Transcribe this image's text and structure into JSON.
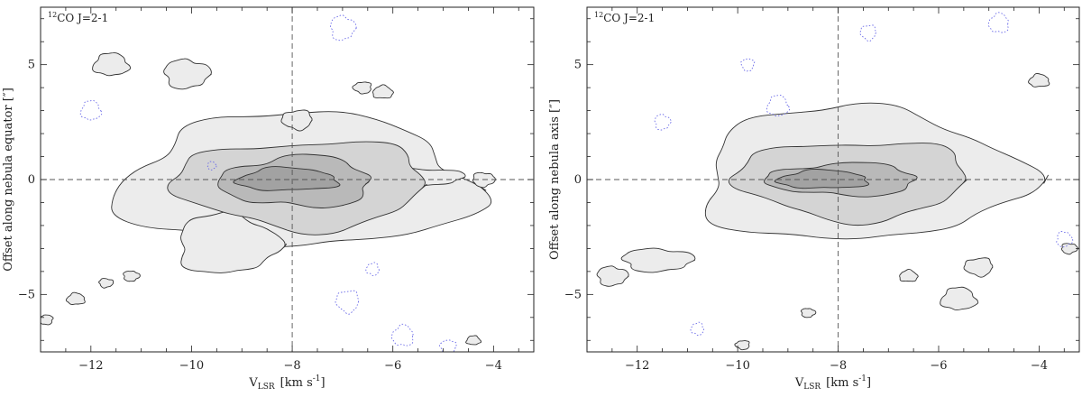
{
  "chart_data": [
    {
      "type": "contour",
      "label_sup": "12",
      "label_main": "CO J=2-1",
      "xlabel_main": "V",
      "xlabel_sub": "LSR",
      "xlabel_unit_a": "[km s",
      "xlabel_unit_sup": "-1",
      "xlabel_unit_b": "]",
      "ylabel": "Offset along nebula equator [″]",
      "xlim": [
        -13,
        -3.2
      ],
      "ylim": [
        -7.5,
        7.5
      ],
      "xticks": [
        -12,
        -10,
        -8,
        -6,
        -4
      ],
      "yticks": [
        -5,
        0,
        5
      ],
      "xtick_labels": [
        "−12",
        "−10",
        "−8",
        "−6",
        "−4"
      ],
      "ytick_labels": [
        "−5",
        "0",
        "5"
      ],
      "reference_lines": {
        "x": -8,
        "y": 0
      },
      "fill_levels": [
        "#ececec",
        "#d4d4d4",
        "#b9b9b9",
        "#a2a2a2"
      ],
      "blobs": [
        {
          "level": 1,
          "cx": -7.9,
          "cy": -0.1,
          "rx": 3.5,
          "ry": 2.9
        },
        {
          "level": 1,
          "cx": -9.3,
          "cy": -2.8,
          "rx": 1.0,
          "ry": 1.3
        },
        {
          "level": 1,
          "cx": -5.6,
          "cy": 0.1,
          "rx": 1.0,
          "ry": 0.4
        },
        {
          "level": 2,
          "cx": -7.8,
          "cy": -0.2,
          "rx": 2.5,
          "ry": 1.9
        },
        {
          "level": 3,
          "cx": -7.9,
          "cy": -0.1,
          "rx": 1.5,
          "ry": 1.1
        },
        {
          "level": 4,
          "cx": -8.1,
          "cy": 0.0,
          "rx": 1.0,
          "ry": 0.5
        }
      ],
      "islands": [
        {
          "x": -11.6,
          "y": 5.0,
          "r": 0.35
        },
        {
          "x": -10.1,
          "y": 4.6,
          "r": 0.45
        },
        {
          "x": -7.9,
          "y": 2.6,
          "r": 0.3
        },
        {
          "x": -12.3,
          "y": -5.2,
          "r": 0.18
        },
        {
          "x": -11.2,
          "y": -4.2,
          "r": 0.16
        },
        {
          "x": -6.6,
          "y": 4.0,
          "r": 0.18
        },
        {
          "x": -6.2,
          "y": 3.8,
          "r": 0.2
        },
        {
          "x": -4.2,
          "y": 0.0,
          "r": 0.22
        },
        {
          "x": -12.9,
          "y": -6.1,
          "r": 0.15
        },
        {
          "x": -4.4,
          "y": -7.0,
          "r": 0.14
        },
        {
          "x": -11.7,
          "y": -4.5,
          "r": 0.14
        }
      ],
      "negative_islands": [
        {
          "x": -12.0,
          "y": 3.0,
          "r": 0.28
        },
        {
          "x": -7.0,
          "y": 6.6,
          "r": 0.35
        },
        {
          "x": -6.9,
          "y": -5.3,
          "r": 0.32
        },
        {
          "x": -5.8,
          "y": -6.8,
          "r": 0.3
        },
        {
          "x": -9.6,
          "y": 0.6,
          "r": 0.12
        },
        {
          "x": -4.9,
          "y": -7.3,
          "r": 0.22
        },
        {
          "x": -6.4,
          "y": -3.9,
          "r": 0.18
        }
      ]
    },
    {
      "type": "contour",
      "label_sup": "12",
      "label_main": "CO J=2-1",
      "xlabel_main": "V",
      "xlabel_sub": "LSR",
      "xlabel_unit_a": "[km s",
      "xlabel_unit_sup": "-1",
      "xlabel_unit_b": "]",
      "ylabel": "Offset along nebula axis [″]",
      "xlim": [
        -13,
        -3.2
      ],
      "ylim": [
        -7.5,
        7.5
      ],
      "xticks": [
        -12,
        -10,
        -8,
        -6,
        -4
      ],
      "yticks": [
        -5,
        0,
        5
      ],
      "xtick_labels": [
        "−12",
        "−10",
        "−8",
        "−6",
        "−4"
      ],
      "ytick_labels": [
        "−5",
        "0",
        "5"
      ],
      "reference_lines": {
        "x": -8,
        "y": 0
      },
      "fill_levels": [
        "#ececec",
        "#d4d4d4",
        "#b9b9b9",
        "#a2a2a2"
      ],
      "blobs": [
        {
          "level": 1,
          "cx": -7.6,
          "cy": 0.2,
          "rx": 3.2,
          "ry": 2.9
        },
        {
          "level": 1,
          "cx": -11.6,
          "cy": -3.5,
          "rx": 0.7,
          "ry": 0.5
        },
        {
          "level": 2,
          "cx": -7.7,
          "cy": 0.0,
          "rx": 2.3,
          "ry": 1.7
        },
        {
          "level": 3,
          "cx": -7.9,
          "cy": 0.0,
          "rx": 1.5,
          "ry": 0.7
        },
        {
          "level": 4,
          "cx": -8.3,
          "cy": 0.0,
          "rx": 0.9,
          "ry": 0.4
        }
      ],
      "islands": [
        {
          "x": -5.6,
          "y": -5.2,
          "r": 0.35
        },
        {
          "x": -12.5,
          "y": -4.2,
          "r": 0.3
        },
        {
          "x": -5.2,
          "y": -3.8,
          "r": 0.28
        },
        {
          "x": -4.0,
          "y": 4.3,
          "r": 0.2
        },
        {
          "x": -8.6,
          "y": -5.8,
          "r": 0.14
        },
        {
          "x": -9.9,
          "y": -7.2,
          "r": 0.14
        },
        {
          "x": -6.6,
          "y": -4.2,
          "r": 0.18
        },
        {
          "x": -3.4,
          "y": -3.0,
          "r": 0.16
        }
      ],
      "negative_islands": [
        {
          "x": -9.2,
          "y": 3.2,
          "r": 0.3
        },
        {
          "x": -11.5,
          "y": 2.5,
          "r": 0.22
        },
        {
          "x": -7.4,
          "y": 6.4,
          "r": 0.22
        },
        {
          "x": -4.8,
          "y": 6.8,
          "r": 0.28
        },
        {
          "x": -3.5,
          "y": -2.6,
          "r": 0.22
        },
        {
          "x": -9.8,
          "y": 5.0,
          "r": 0.18
        },
        {
          "x": -10.8,
          "y": -6.5,
          "r": 0.18
        }
      ]
    }
  ]
}
